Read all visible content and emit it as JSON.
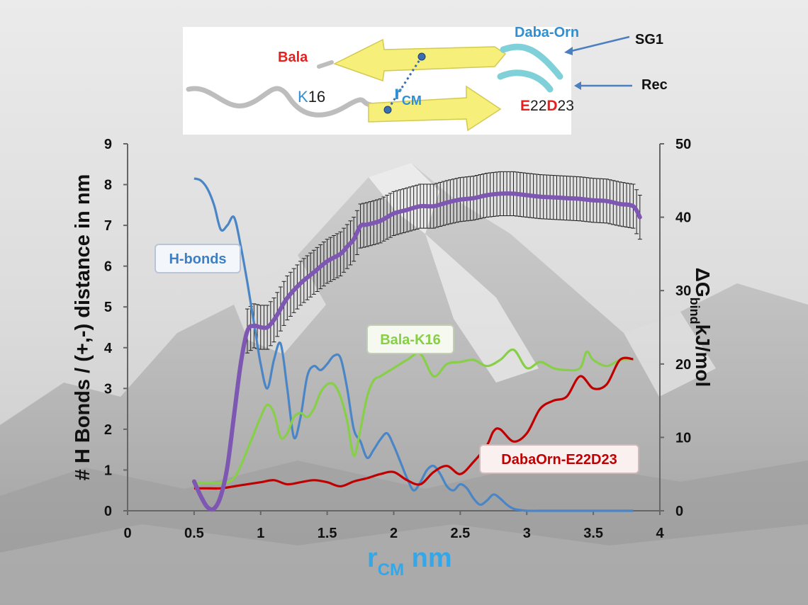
{
  "inset": {
    "bala": "Bala",
    "daba_orn": "Daba-Orn",
    "sg1": "SG1",
    "rec": "Rec",
    "k16_k": "K",
    "k16_num": "16",
    "rcm_r": "r",
    "rcm_sub": "CM",
    "e22_e": "E",
    "e22_num": "22",
    "e22_d": "D",
    "e22_num2": "23"
  },
  "colors": {
    "hbonds": "#4a86c6",
    "bala_k16": "#86cf46",
    "dabaorn": "#c00000",
    "dg": "#7e57b3",
    "axis_label_x": "#33a7e8",
    "red_text": "#e81f1f",
    "blue_text": "#2f8fd0"
  },
  "chart_data": {
    "type": "line",
    "xlabel": "r",
    "xlabel_sub": "CM",
    "xlabel_unit": " nm",
    "ylabel": "# H Bonds / (+,-) distance in nm",
    "y2label_prefix": "ΔG",
    "y2label_sub": "bind",
    "y2label_suffix": "kJ/mol",
    "xlim": [
      0,
      4
    ],
    "ylim": [
      0,
      9
    ],
    "y2lim": [
      0,
      50
    ],
    "xticks": [
      "0",
      "0.5",
      "1",
      "1.5",
      "2",
      "2.5",
      "3",
      "3.5",
      "4"
    ],
    "yticks": [
      "0",
      "1",
      "2",
      "3",
      "4",
      "5",
      "6",
      "7",
      "8",
      "9"
    ],
    "y2ticks": [
      "0",
      "10",
      "20",
      "30",
      "40",
      "50"
    ],
    "series": [
      {
        "name": "H-bonds",
        "axis": "left",
        "x": [
          0.5,
          0.55,
          0.6,
          0.65,
          0.7,
          0.75,
          0.8,
          0.85,
          0.9,
          0.95,
          1.0,
          1.05,
          1.1,
          1.15,
          1.2,
          1.25,
          1.3,
          1.35,
          1.4,
          1.45,
          1.5,
          1.55,
          1.6,
          1.65,
          1.7,
          1.75,
          1.8,
          1.85,
          1.9,
          1.95,
          2.0,
          2.05,
          2.1,
          2.15,
          2.2,
          2.25,
          2.3,
          2.35,
          2.4,
          2.45,
          2.5,
          2.55,
          2.6,
          2.65,
          2.7,
          2.75,
          2.8,
          2.85,
          2.9,
          2.95,
          3.0,
          3.1,
          3.2,
          3.3,
          3.4,
          3.5,
          3.6,
          3.7,
          3.8
        ],
        "values": [
          8.15,
          8.1,
          7.9,
          7.5,
          6.9,
          7.0,
          7.2,
          6.5,
          5.6,
          4.6,
          3.6,
          3.0,
          3.7,
          4.1,
          3.0,
          1.8,
          2.3,
          3.3,
          3.55,
          3.45,
          3.6,
          3.8,
          3.75,
          3.0,
          2.0,
          1.7,
          1.3,
          1.5,
          1.75,
          1.9,
          1.6,
          1.2,
          0.8,
          0.5,
          0.7,
          1.0,
          1.1,
          0.9,
          0.6,
          0.5,
          0.65,
          0.55,
          0.3,
          0.15,
          0.25,
          0.4,
          0.3,
          0.15,
          0.05,
          0.02,
          0.0,
          0.0,
          0.0,
          0.0,
          0.0,
          0.0,
          0.0,
          0.0,
          0.0
        ]
      },
      {
        "name": "Bala-K16",
        "axis": "left",
        "x": [
          0.5,
          0.6,
          0.7,
          0.75,
          0.8,
          0.85,
          0.9,
          0.95,
          1.0,
          1.05,
          1.1,
          1.15,
          1.2,
          1.25,
          1.3,
          1.35,
          1.4,
          1.45,
          1.5,
          1.55,
          1.6,
          1.65,
          1.7,
          1.75,
          1.8,
          1.85,
          1.9,
          2.0,
          2.1,
          2.2,
          2.3,
          2.4,
          2.5,
          2.6,
          2.7,
          2.8,
          2.9,
          3.0,
          3.1,
          3.2,
          3.3,
          3.4,
          3.45,
          3.5,
          3.6,
          3.7,
          3.8
        ],
        "values": [
          0.68,
          0.68,
          0.68,
          0.7,
          0.8,
          1.1,
          1.5,
          1.9,
          2.3,
          2.6,
          2.4,
          1.8,
          1.9,
          2.3,
          2.4,
          2.3,
          2.5,
          2.9,
          3.1,
          3.1,
          2.8,
          2.2,
          1.35,
          2.0,
          2.8,
          3.2,
          3.3,
          3.5,
          3.7,
          3.85,
          3.3,
          3.6,
          3.65,
          3.7,
          3.55,
          3.7,
          3.95,
          3.5,
          3.65,
          3.5,
          3.45,
          3.5,
          3.9,
          3.7,
          3.55,
          3.7,
          3.72
        ]
      },
      {
        "name": "DabaOrn-E22D23",
        "axis": "left",
        "x": [
          0.5,
          0.6,
          0.7,
          0.8,
          0.9,
          1.0,
          1.1,
          1.2,
          1.3,
          1.4,
          1.5,
          1.6,
          1.7,
          1.8,
          1.9,
          2.0,
          2.1,
          2.2,
          2.3,
          2.4,
          2.5,
          2.6,
          2.7,
          2.75,
          2.8,
          2.9,
          3.0,
          3.1,
          3.2,
          3.3,
          3.4,
          3.5,
          3.6,
          3.7,
          3.8
        ],
        "values": [
          0.55,
          0.55,
          0.55,
          0.6,
          0.65,
          0.7,
          0.75,
          0.65,
          0.7,
          0.75,
          0.7,
          0.6,
          0.72,
          0.8,
          0.9,
          0.95,
          0.75,
          0.65,
          0.95,
          1.1,
          0.9,
          1.2,
          1.6,
          1.95,
          2.0,
          1.7,
          1.9,
          2.5,
          2.7,
          2.8,
          3.3,
          3.0,
          3.1,
          3.7,
          3.72
        ]
      },
      {
        "name": "ΔG bind",
        "axis": "right",
        "x": [
          0.5,
          0.55,
          0.6,
          0.65,
          0.7,
          0.75,
          0.8,
          0.85,
          0.9,
          0.95,
          1.0,
          1.05,
          1.1,
          1.15,
          1.2,
          1.3,
          1.4,
          1.5,
          1.6,
          1.65,
          1.7,
          1.75,
          1.8,
          1.9,
          2.0,
          2.1,
          2.2,
          2.3,
          2.4,
          2.5,
          2.6,
          2.7,
          2.8,
          2.9,
          3.0,
          3.1,
          3.2,
          3.3,
          3.4,
          3.5,
          3.6,
          3.7,
          3.8,
          3.85
        ],
        "values": [
          4.0,
          2.0,
          0.5,
          0.3,
          2.0,
          6.0,
          13.0,
          20.0,
          24.5,
          25.2,
          25.0,
          25.0,
          26.0,
          27.5,
          29.0,
          31.0,
          32.5,
          34.0,
          35.0,
          36.0,
          37.0,
          38.8,
          39.0,
          39.5,
          40.5,
          41.0,
          41.5,
          41.5,
          42.0,
          42.4,
          42.6,
          43.0,
          43.2,
          43.2,
          43.0,
          42.8,
          42.7,
          42.6,
          42.5,
          42.3,
          42.2,
          41.8,
          41.5,
          40.0
        ],
        "error": 3.0
      }
    ],
    "labels": {
      "hbonds": "H-bonds",
      "bala": "Bala-K16",
      "daba": "DabaOrn-E22D23"
    }
  }
}
